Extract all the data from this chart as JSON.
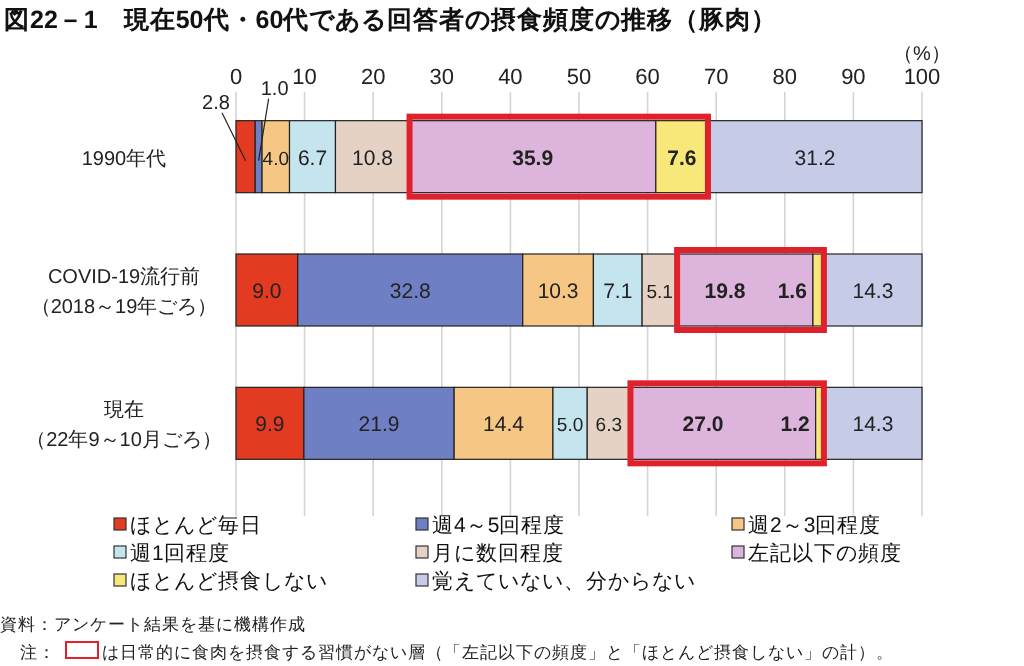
{
  "chart_data": {
    "type": "bar",
    "orientation": "horizontal",
    "stacked": true,
    "title": "図22－1　現在50代・60代である回答者の摂食頻度の推移（豚肉）",
    "xlabel": "（%）",
    "categories": [
      "1990年代",
      "COVID-19流行前（2018～19年ごろ）",
      "現在（22年9～10月ごろ）"
    ],
    "series": [
      {
        "name": "ほとんど毎日",
        "color": "#e33a22",
        "values": [
          2.8,
          9.0,
          9.9
        ],
        "value_labels": [
          "2.8",
          "9.0",
          "9.9"
        ]
      },
      {
        "name": "週4～5回程度",
        "color": "#6f7fc4",
        "values": [
          1.0,
          32.8,
          21.9
        ],
        "value_labels": [
          "1.0",
          "32.8",
          "21.9"
        ]
      },
      {
        "name": "週2～3回程度",
        "color": "#f6c684",
        "values": [
          4.0,
          10.3,
          14.4
        ],
        "value_labels": [
          "4.0",
          "10.3",
          "14.4"
        ]
      },
      {
        "name": "週1回程度",
        "color": "#c4e4ee",
        "values": [
          6.7,
          7.1,
          5.0
        ],
        "value_labels": [
          "6.7",
          "7.1",
          "5.0"
        ]
      },
      {
        "name": "月に数回程度",
        "color": "#e6d2c4",
        "values": [
          10.8,
          5.1,
          6.3
        ],
        "value_labels": [
          "10.8",
          "5.1",
          "6.3"
        ]
      },
      {
        "name": "左記以下の頻度",
        "color": "#dcb4dc",
        "values": [
          35.9,
          19.8,
          27.0
        ],
        "value_labels": [
          "35.9",
          "19.8",
          "27.0"
        ]
      },
      {
        "name": "ほとんど摂食しない",
        "color": "#f8e87a",
        "values": [
          7.6,
          1.6,
          1.2
        ],
        "value_labels": [
          "7.6",
          "1.6",
          "1.2"
        ]
      },
      {
        "name": "覚えていない、分からない",
        "color": "#c6cce8",
        "values": [
          31.2,
          14.3,
          14.3
        ],
        "value_labels": [
          "31.2",
          "14.3",
          "14.3"
        ]
      }
    ],
    "xlim": [
      0,
      100
    ],
    "xticks": [
      0,
      10,
      20,
      30,
      40,
      50,
      60,
      70,
      80,
      90,
      100
    ],
    "grid": "x",
    "legend": "bottom",
    "annotations": [
      "資料：アンケート結果を基に機構作成",
      "注：",
      "は日常的に食肉を摂食する習慣がない層（「左記以下の頻度」と「ほとんど摂食しない」の計）。"
    ]
  }
}
